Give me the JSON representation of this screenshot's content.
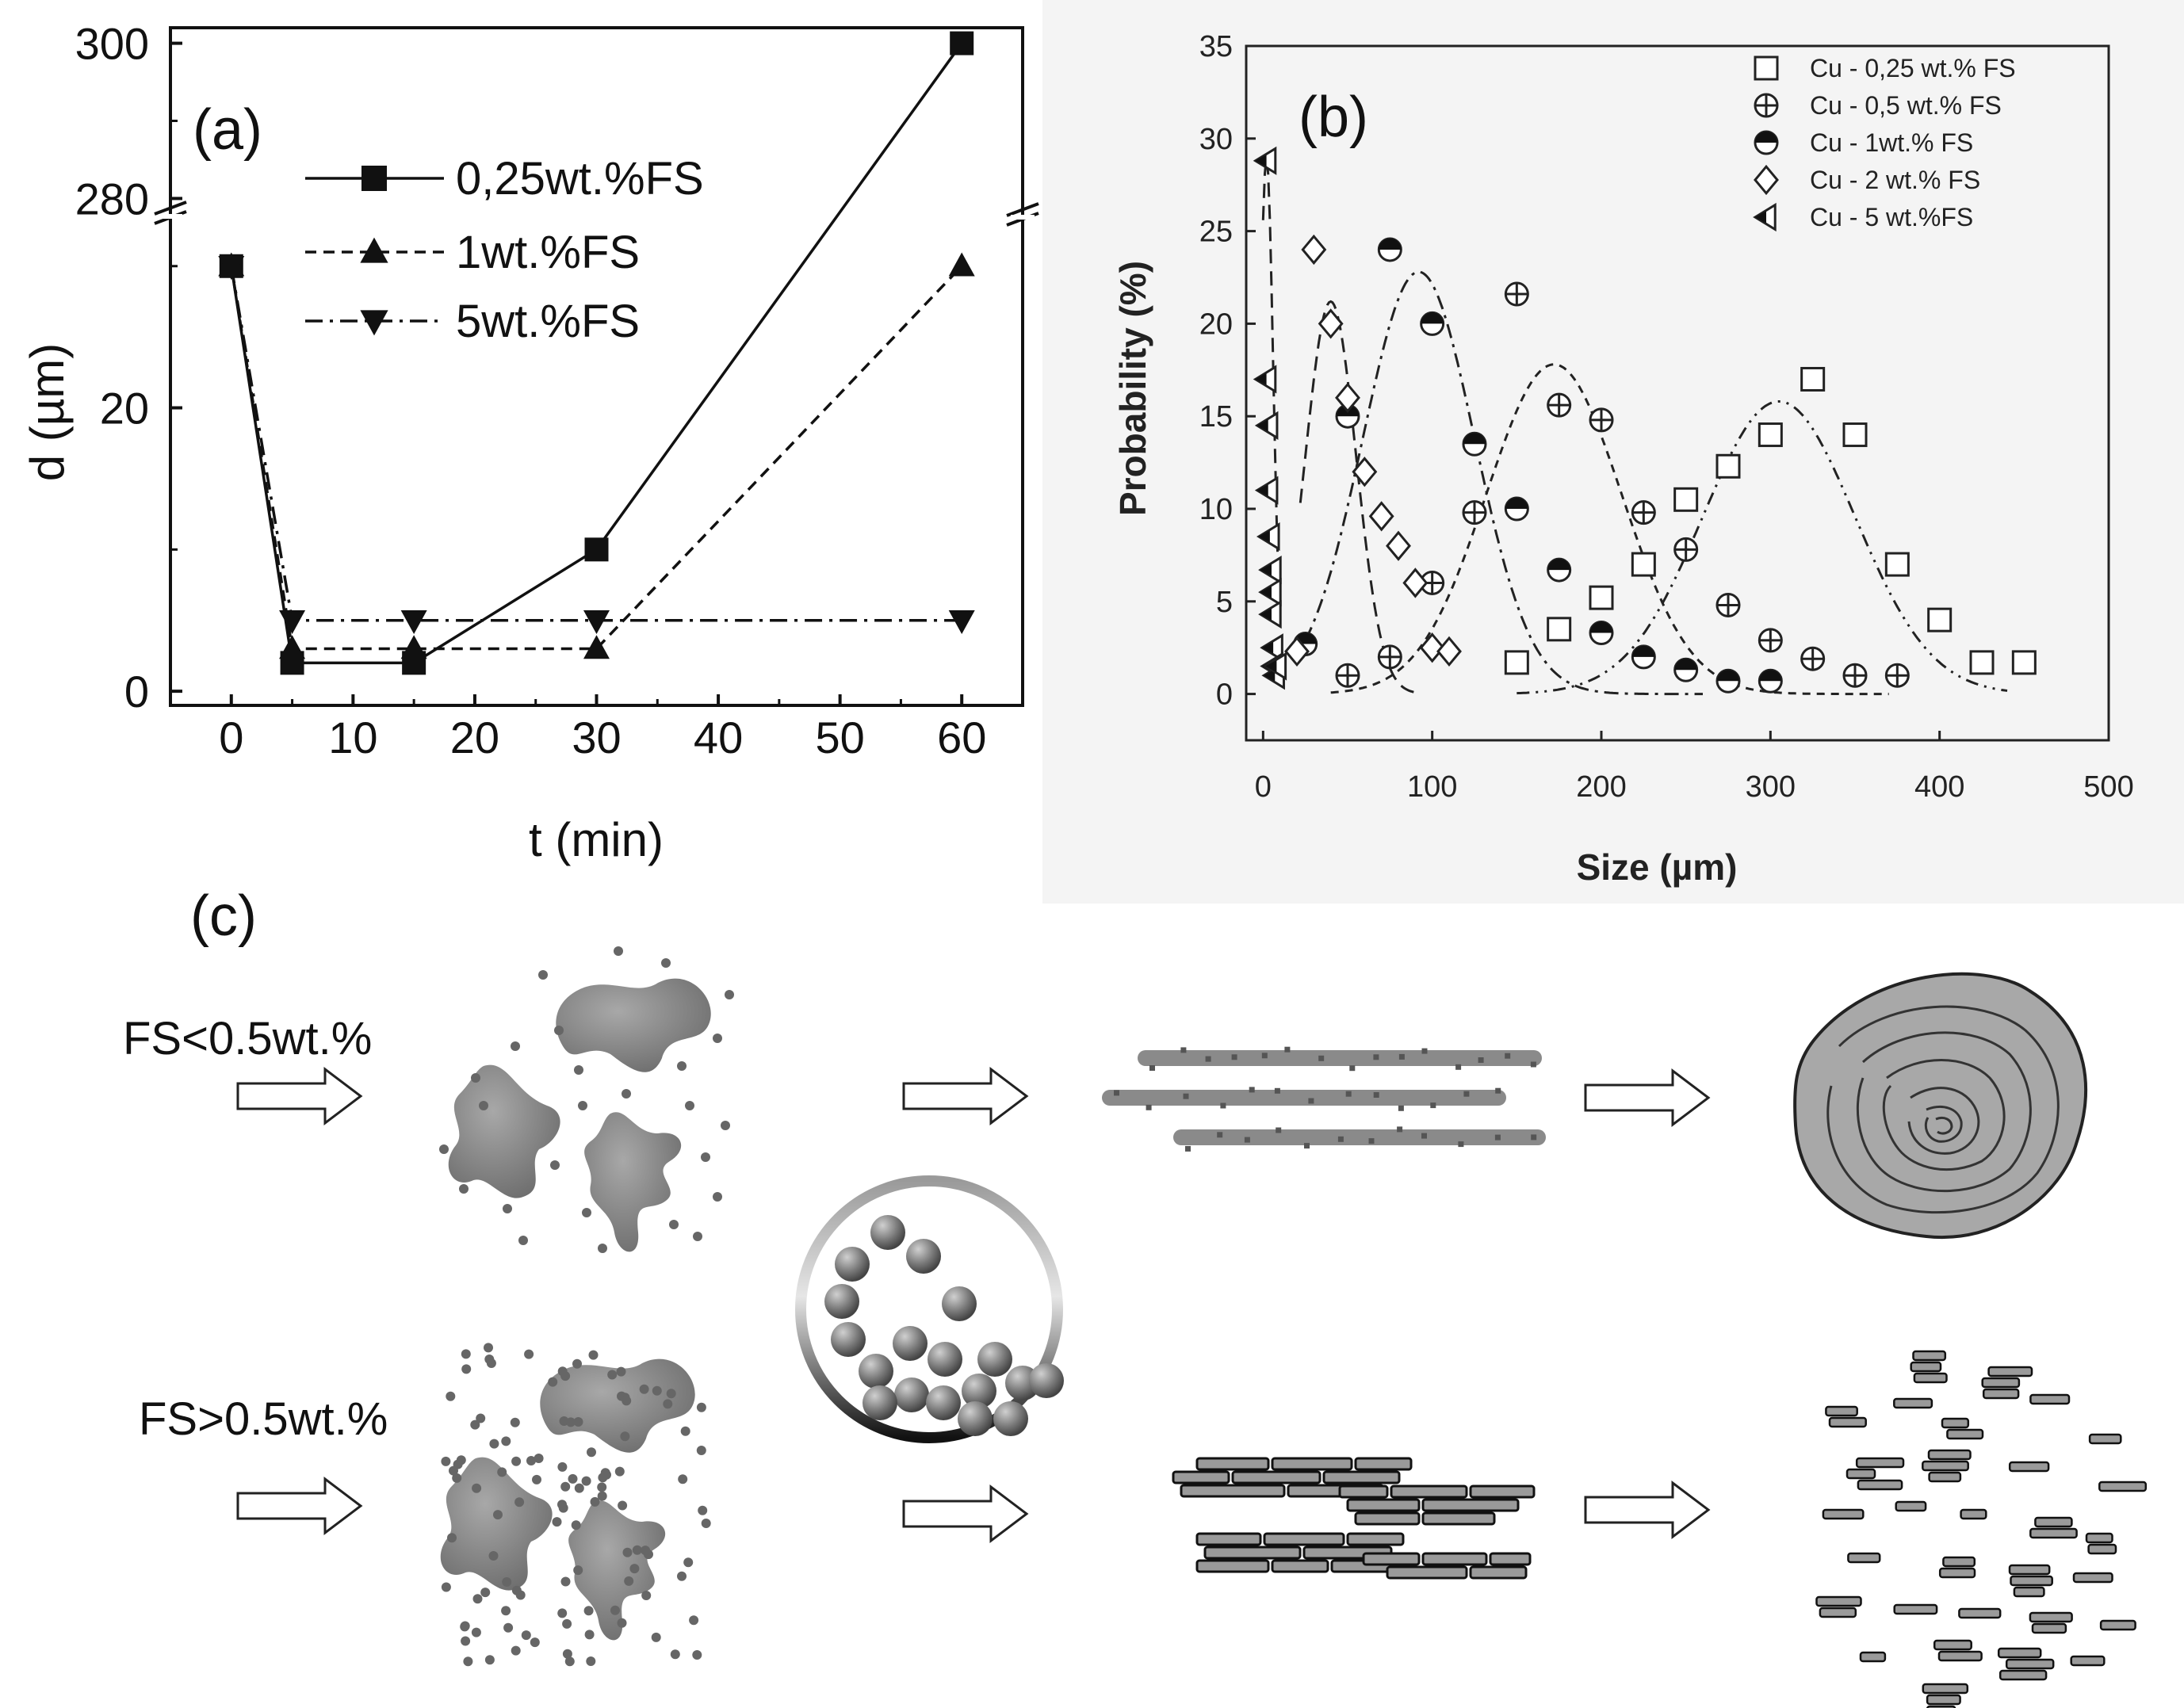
{
  "chart_data": [
    {
      "id": "a",
      "type": "line",
      "panel_label": "(a)",
      "xlabel": "t (min)",
      "ylabel": "d (µm)",
      "x_ticks": [
        "0",
        "10",
        "20",
        "30",
        "40",
        "50",
        "60"
      ],
      "y_ticks_lower": [
        "0",
        "20"
      ],
      "y_ticks_upper": [
        "280",
        "300"
      ],
      "xlim": [
        -5,
        65
      ],
      "ylim_lower": [
        -1,
        32
      ],
      "ylim_upper": [
        278,
        302
      ],
      "broken_axis": true,
      "legend_position": "top-center",
      "series": [
        {
          "name": "0,25wt.%FS",
          "marker": "square",
          "line": "solid",
          "x": [
            0,
            5,
            15,
            30,
            60
          ],
          "y": [
            30,
            2,
            2,
            10,
            300
          ]
        },
        {
          "name": "1wt.%FS",
          "marker": "triangle-up",
          "line": "dashed",
          "x": [
            0,
            5,
            15,
            30,
            60
          ],
          "y": [
            30,
            3,
            3,
            3,
            30
          ]
        },
        {
          "name": "5wt.%FS",
          "marker": "triangle-down",
          "line": "dashdot",
          "x": [
            0,
            5,
            15,
            30,
            60
          ],
          "y": [
            30,
            5,
            5,
            5,
            5
          ]
        }
      ]
    },
    {
      "id": "b",
      "type": "scatter",
      "panel_label": "(b)",
      "xlabel": "Size (µm)",
      "ylabel": "Probability (%)",
      "x_ticks": [
        "0",
        "100",
        "200",
        "300",
        "400",
        "500"
      ],
      "y_ticks": [
        "0",
        "5",
        "10",
        "15",
        "20",
        "25",
        "30",
        "35"
      ],
      "xlim": [
        -10,
        500
      ],
      "ylim": [
        -2.5,
        35
      ],
      "legend_position": "top-right",
      "series": [
        {
          "name": "Cu - 0,25 wt.% FS",
          "marker": "open-square",
          "x": [
            150,
            175,
            200,
            225,
            250,
            275,
            300,
            325,
            350,
            375,
            400,
            425,
            450
          ],
          "y": [
            1.7,
            3.5,
            5.2,
            7,
            10.5,
            12.3,
            14,
            17,
            14,
            7,
            4,
            1.7,
            1.7
          ],
          "fit": {
            "mu": 305,
            "sigma": 45,
            "amp": 15.8,
            "from": 150,
            "to": 440,
            "style": "dashdotdot"
          }
        },
        {
          "name": "Cu - 0,5 wt.% FS",
          "marker": "circle-plus",
          "x": [
            50,
            75,
            100,
            125,
            150,
            175,
            200,
            225,
            250,
            275,
            300,
            325,
            350,
            375
          ],
          "y": [
            1,
            2,
            6,
            9.8,
            21.6,
            15.6,
            14.8,
            9.8,
            7.8,
            4.8,
            2.9,
            1.9,
            1,
            1
          ],
          "fit": {
            "mu": 172,
            "sigma": 40,
            "amp": 17.8,
            "from": 40,
            "to": 370,
            "style": "dotted"
          }
        },
        {
          "name": "Cu - 1wt.% FS",
          "marker": "half-filled-circle",
          "x": [
            25,
            50,
            75,
            100,
            125,
            150,
            175,
            200,
            225,
            250,
            275,
            300
          ],
          "y": [
            2.7,
            15,
            24,
            20,
            13.5,
            10,
            6.7,
            3.3,
            2,
            1.3,
            0.7,
            0.7
          ],
          "fit": {
            "mu": 92,
            "sigma": 33,
            "amp": 22.8,
            "from": 25,
            "to": 260,
            "style": "dashdot"
          }
        },
        {
          "name": "Cu - 2 wt.% FS",
          "marker": "open-diamond",
          "x": [
            20,
            30,
            40,
            50,
            60,
            70,
            80,
            90,
            100,
            110
          ],
          "y": [
            2.3,
            24,
            20,
            16,
            12,
            9.6,
            8,
            6,
            2.5,
            2.3
          ],
          "fit": {
            "mu": 40,
            "sigma": 15,
            "amp": 21.2,
            "from": 22,
            "to": 90,
            "style": "dashed"
          }
        },
        {
          "name": "Cu - 5 wt.%FS",
          "marker": "left-half-triangle",
          "x": [
            2,
            2,
            3,
            3,
            4,
            5,
            5,
            5,
            6,
            6,
            7,
            8
          ],
          "y": [
            28.8,
            17,
            14.5,
            11,
            8.5,
            6.7,
            5.5,
            4.3,
            2.5,
            1.5,
            1,
            1.5
          ],
          "fit": {
            "mu": 2,
            "sigma": 4,
            "amp": 29,
            "from": 0,
            "to": 10,
            "style": "dashed"
          }
        }
      ]
    }
  ],
  "schematic": {
    "panel_label": "(c)",
    "low_fs_label": "FS<0.5wt.%",
    "high_fs_label": "FS>0.5wt.%"
  }
}
